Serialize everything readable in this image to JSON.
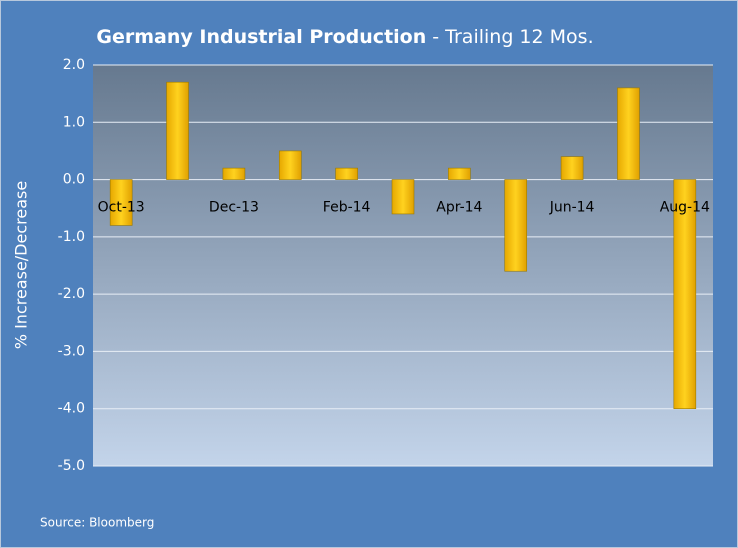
{
  "chart_data": {
    "type": "bar",
    "title": "Germany Industrial Production",
    "subtitle": " - Trailing 12 Mos.",
    "y_label": "% Increase/Decrease",
    "source": "Source: Bloomberg",
    "categories": [
      "Oct-13",
      null,
      "Dec-13",
      null,
      "Feb-14",
      null,
      "Apr-14",
      null,
      "Jun-14",
      null,
      "Aug-14"
    ],
    "values": [
      -0.8,
      1.7,
      0.2,
      0.5,
      0.2,
      -0.6,
      0.2,
      -1.6,
      0.4,
      1.6,
      -4.0
    ],
    "color": "#f5b800",
    "ylim": [
      -5,
      2
    ],
    "yticks": [
      {
        "value": -5,
        "label": "-5.0"
      },
      {
        "value": -4,
        "label": "-4.0"
      },
      {
        "value": -3,
        "label": "-3.0"
      },
      {
        "value": -2,
        "label": "-2.0"
      },
      {
        "value": -1,
        "label": "-1.0"
      },
      {
        "value": 0,
        "label": "0.0"
      },
      {
        "value": 1,
        "label": "1.0"
      },
      {
        "value": 2,
        "label": "2.0"
      }
    ],
    "grid": true
  }
}
